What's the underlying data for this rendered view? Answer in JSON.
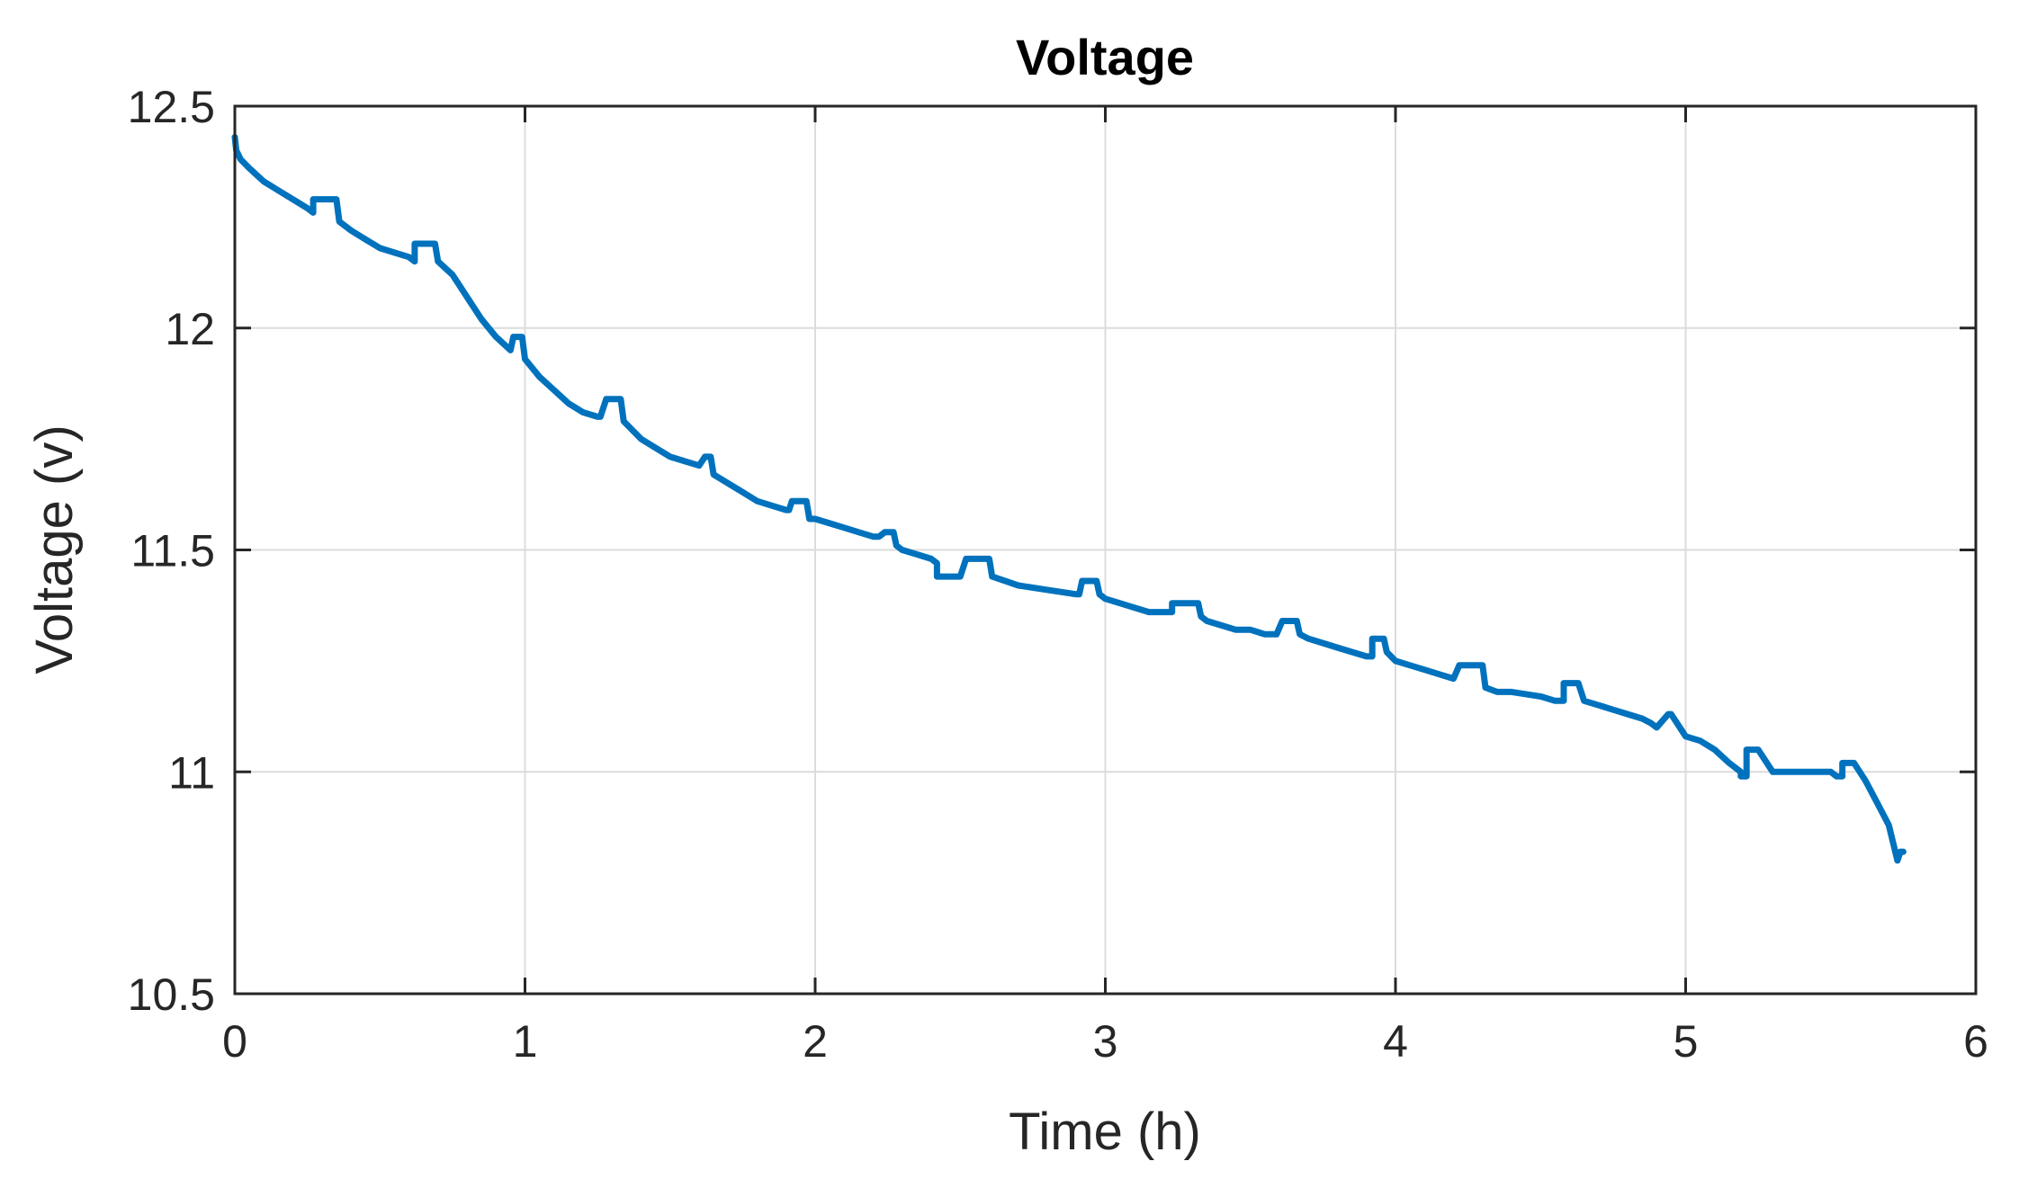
{
  "chart_data": {
    "type": "line",
    "title": "Voltage",
    "xlabel": "Time (h)",
    "ylabel": "Voltage (v)",
    "xlim": [
      0,
      6
    ],
    "ylim": [
      10.5,
      12.5
    ],
    "xticks": [
      0,
      1,
      2,
      3,
      4,
      5,
      6
    ],
    "yticks": [
      10.5,
      11,
      11.5,
      12,
      12.5
    ],
    "xtick_labels": [
      "0",
      "1",
      "2",
      "3",
      "4",
      "5",
      "6"
    ],
    "ytick_labels": [
      "10.5",
      "11",
      "11.5",
      "12",
      "12.5"
    ],
    "grid": true,
    "color": "#0072BD",
    "series": [
      {
        "x": [
          0,
          0.005,
          0.02,
          0.05,
          0.1,
          0.15,
          0.2,
          0.25,
          0.27,
          0.27,
          0.29,
          0.29,
          0.35,
          0.36,
          0.36,
          0.4,
          0.45,
          0.5,
          0.55,
          0.6,
          0.62,
          0.62,
          0.63,
          0.63,
          0.69,
          0.7,
          0.7,
          0.75,
          0.8,
          0.85,
          0.9,
          0.95,
          0.95,
          0.96,
          0.96,
          0.99,
          1.0,
          1.0,
          1.05,
          1.1,
          1.15,
          1.2,
          1.25,
          1.26,
          1.28,
          1.28,
          1.33,
          1.34,
          1.34,
          1.4,
          1.45,
          1.5,
          1.55,
          1.6,
          1.6,
          1.62,
          1.62,
          1.64,
          1.65,
          1.7,
          1.75,
          1.8,
          1.85,
          1.9,
          1.91,
          1.92,
          1.92,
          1.97,
          1.98,
          2.0,
          2.05,
          2.1,
          2.15,
          2.2,
          2.22,
          2.22,
          2.24,
          2.24,
          2.27,
          2.28,
          2.3,
          2.35,
          2.4,
          2.42,
          2.42,
          2.44,
          2.44,
          2.5,
          2.5,
          2.52,
          2.52,
          2.6,
          2.61,
          2.61,
          2.7,
          2.8,
          2.9,
          2.91,
          2.92,
          2.92,
          2.97,
          2.98,
          3.0,
          3.05,
          3.1,
          3.15,
          3.2,
          3.23,
          3.23,
          3.25,
          3.25,
          3.32,
          3.33,
          3.35,
          3.4,
          3.45,
          3.5,
          3.55,
          3.59,
          3.59,
          3.61,
          3.61,
          3.66,
          3.67,
          3.7,
          3.75,
          3.8,
          3.85,
          3.9,
          3.91,
          3.92,
          3.92,
          3.96,
          3.97,
          3.97,
          4.0,
          4.05,
          4.1,
          4.15,
          4.2,
          4.2,
          4.22,
          4.22,
          4.3,
          4.31,
          4.35,
          4.4,
          4.5,
          4.55,
          4.56,
          4.58,
          4.58,
          4.62,
          4.63,
          4.65,
          4.7,
          4.75,
          4.8,
          4.85,
          4.88,
          4.9,
          4.9,
          4.94,
          4.95,
          5.0,
          5.05,
          5.1,
          5.15,
          5.19,
          5.19,
          5.21,
          5.21,
          5.24,
          5.25,
          5.3,
          5.4,
          5.5,
          5.52,
          5.54,
          5.54,
          5.57,
          5.58,
          5.62,
          5.66,
          5.7,
          5.73,
          5.74,
          5.75
        ],
        "values": [
          12.43,
          12.4,
          12.38,
          12.36,
          12.33,
          12.31,
          12.29,
          12.27,
          12.26,
          12.29,
          12.29,
          12.29,
          12.29,
          12.24,
          12.24,
          12.22,
          12.2,
          12.18,
          12.17,
          12.16,
          12.15,
          12.19,
          12.19,
          12.19,
          12.19,
          12.15,
          12.15,
          12.12,
          12.07,
          12.02,
          11.98,
          11.95,
          11.95,
          11.98,
          11.98,
          11.98,
          11.93,
          11.93,
          11.89,
          11.86,
          11.83,
          11.81,
          11.8,
          11.8,
          11.84,
          11.84,
          11.84,
          11.79,
          11.79,
          11.75,
          11.73,
          11.71,
          11.7,
          11.69,
          11.69,
          11.71,
          11.71,
          11.71,
          11.67,
          11.65,
          11.63,
          11.61,
          11.6,
          11.59,
          11.59,
          11.61,
          11.61,
          11.61,
          11.57,
          11.57,
          11.56,
          11.55,
          11.54,
          11.53,
          11.53,
          11.53,
          11.54,
          11.54,
          11.54,
          11.51,
          11.5,
          11.49,
          11.48,
          11.47,
          11.44,
          11.44,
          11.44,
          11.44,
          11.44,
          11.48,
          11.48,
          11.48,
          11.44,
          11.44,
          11.42,
          11.41,
          11.4,
          11.4,
          11.43,
          11.43,
          11.43,
          11.4,
          11.39,
          11.38,
          11.37,
          11.36,
          11.36,
          11.36,
          11.38,
          11.38,
          11.38,
          11.38,
          11.35,
          11.34,
          11.33,
          11.32,
          11.32,
          11.31,
          11.31,
          11.31,
          11.34,
          11.34,
          11.34,
          11.31,
          11.3,
          11.29,
          11.28,
          11.27,
          11.26,
          11.26,
          11.26,
          11.3,
          11.3,
          11.27,
          11.27,
          11.25,
          11.24,
          11.23,
          11.22,
          11.21,
          11.21,
          11.24,
          11.24,
          11.24,
          11.19,
          11.18,
          11.18,
          11.17,
          11.16,
          11.16,
          11.16,
          11.2,
          11.2,
          11.2,
          11.16,
          11.15,
          11.14,
          11.13,
          11.12,
          11.11,
          11.1,
          11.1,
          11.13,
          11.13,
          11.08,
          11.07,
          11.05,
          11.02,
          11.0,
          10.99,
          10.99,
          11.05,
          11.05,
          11.05,
          11.0,
          11.0,
          11.0,
          10.99,
          10.99,
          11.02,
          11.02,
          11.02,
          10.98,
          10.93,
          10.88,
          10.8,
          10.82,
          10.82
        ]
      }
    ]
  }
}
